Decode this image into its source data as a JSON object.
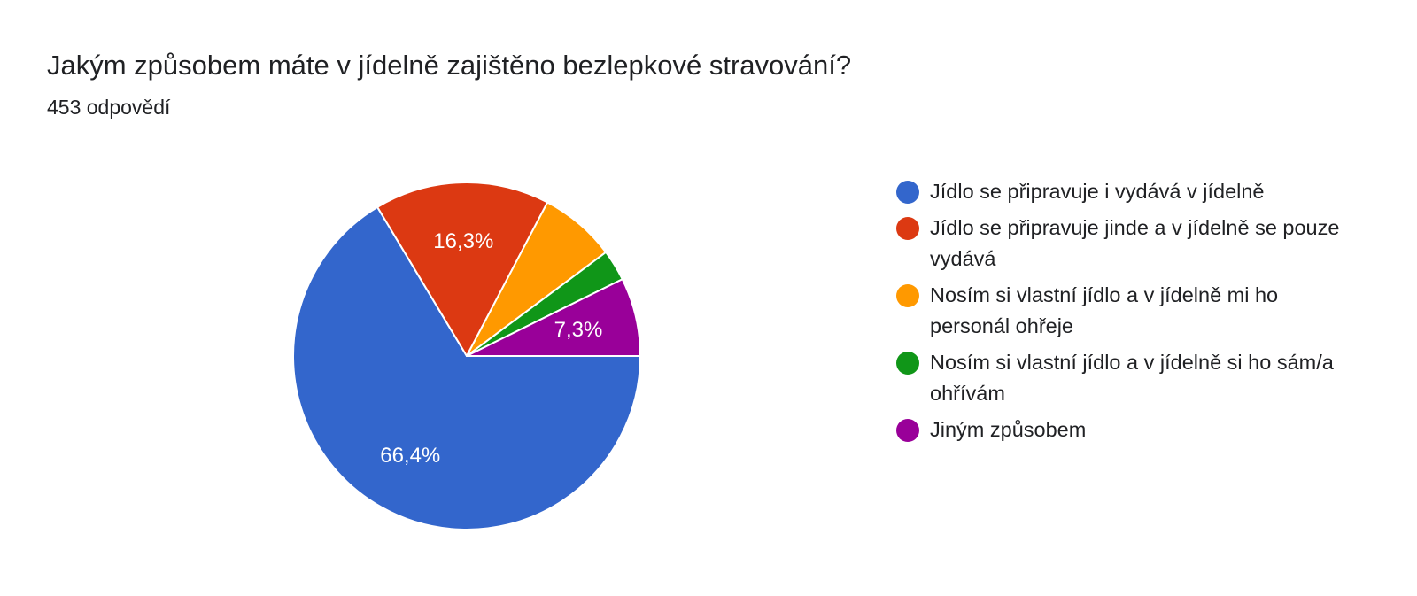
{
  "chart_data": {
    "type": "pie",
    "title": "Jakým způsobem máte v jídelně zajištěno bezlepkové stravování?",
    "subtitle": "453 odpovědí",
    "legend_position": "right",
    "slices": [
      {
        "name": "Jídlo se připravuje i vydává v jídelně",
        "value": 66.4,
        "label": "66,4%",
        "color": "#3366cc"
      },
      {
        "name": "Jídlo se připravuje jinde a v jídelně se pouze vydává",
        "value": 16.3,
        "label": "16,3%",
        "color": "#dc3912"
      },
      {
        "name": "Nosím si vlastní jídlo a v jídelně mi ho personál ohřeje",
        "value": 7.1,
        "label": "",
        "color": "#ff9900"
      },
      {
        "name": "Nosím si vlastní jídlo a v jídelně si ho sám/a ohřívám",
        "value": 2.9,
        "label": "",
        "color": "#109618"
      },
      {
        "name": "Jiným způsobem",
        "value": 7.3,
        "label": "7,3%",
        "color": "#990099"
      }
    ]
  }
}
